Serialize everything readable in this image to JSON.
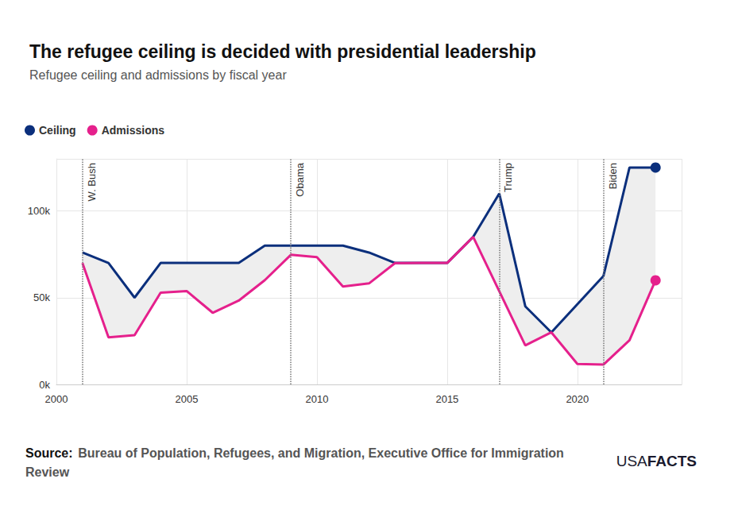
{
  "chart_data": {
    "type": "line",
    "title": "The refugee ceiling is decided with presidential leadership",
    "subtitle": "Refugee ceiling and admissions by fiscal year",
    "x": [
      2001,
      2002,
      2003,
      2004,
      2005,
      2006,
      2007,
      2008,
      2009,
      2010,
      2011,
      2012,
      2013,
      2014,
      2015,
      2016,
      2017,
      2018,
      2019,
      2020,
      2021,
      2022,
      2023
    ],
    "series": [
      {
        "name": "Ceiling",
        "color": "#0b2f7c",
        "marker": "circle",
        "values": [
          76000,
          70000,
          50000,
          70000,
          70000,
          70000,
          70000,
          80000,
          80000,
          80000,
          80000,
          76000,
          70000,
          70000,
          70000,
          85000,
          110000,
          45000,
          30000,
          null,
          62500,
          125000,
          125000
        ]
      },
      {
        "name": "Admissions",
        "color": "#e5208c",
        "marker": "circle",
        "values": [
          69900,
          27100,
          28400,
          52900,
          53800,
          41300,
          48300,
          60100,
          74700,
          73300,
          56400,
          58200,
          69900,
          70000,
          70000,
          85000,
          53700,
          22500,
          30000,
          11800,
          11400,
          25500,
          60000
        ]
      }
    ],
    "xlim": [
      2000,
      2024
    ],
    "xticks": [
      2000,
      2005,
      2010,
      2015,
      2020
    ],
    "ylim": [
      0,
      130000
    ],
    "yticks": [
      {
        "value": 0,
        "label": "0k"
      },
      {
        "value": 50000,
        "label": "50k"
      },
      {
        "value": 100000,
        "label": "100k"
      }
    ],
    "grid": true,
    "legend": "top-left",
    "annotations": [
      {
        "x": 2001,
        "text": "W. Bush"
      },
      {
        "x": 2009,
        "text": "Obama"
      },
      {
        "x": 2017,
        "text": "Trump"
      },
      {
        "x": 2021,
        "text": "Biden"
      }
    ],
    "source_label": "Source:",
    "source": "Bureau of Population, Refugees, and Migration, Executive Office for Immigration Review",
    "logo": [
      "USA",
      "FACTS"
    ]
  }
}
